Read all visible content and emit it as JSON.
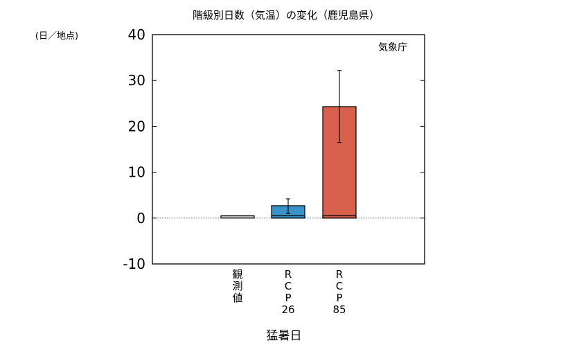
{
  "chart_data": {
    "type": "bar",
    "title": "階級別日数（気温）の変化（鹿児島県）",
    "ylabel": "(日／地点)",
    "xlabel": "猛暑日",
    "annotation": "気象庁",
    "ylim": [
      -10,
      40
    ],
    "yticks": [
      -10,
      0,
      10,
      20,
      30,
      40
    ],
    "yticklabels": [
      "-10",
      "0",
      "10",
      "20",
      "30",
      "40"
    ],
    "zero_line": "dotted",
    "categories": [
      "観測値",
      "RCP26",
      "RCP85"
    ],
    "category_label_lines": [
      [
        "観",
        "測",
        "値"
      ],
      [
        "R",
        "C",
        "P",
        "26"
      ],
      [
        "R",
        "C",
        "P",
        "85"
      ]
    ],
    "baseline_values": [
      0.5,
      0.5,
      0.5
    ],
    "change_values": [
      0,
      2.2,
      23.8
    ],
    "totals": [
      0.5,
      2.7,
      24.3
    ],
    "error_bars": [
      null,
      [
        1.0,
        4.2
      ],
      [
        16.5,
        32.2
      ]
    ],
    "colors": {
      "baseline": "#c8c8c8",
      "RCP26": "#3a92c8",
      "RCP85": "#d9604c"
    }
  }
}
